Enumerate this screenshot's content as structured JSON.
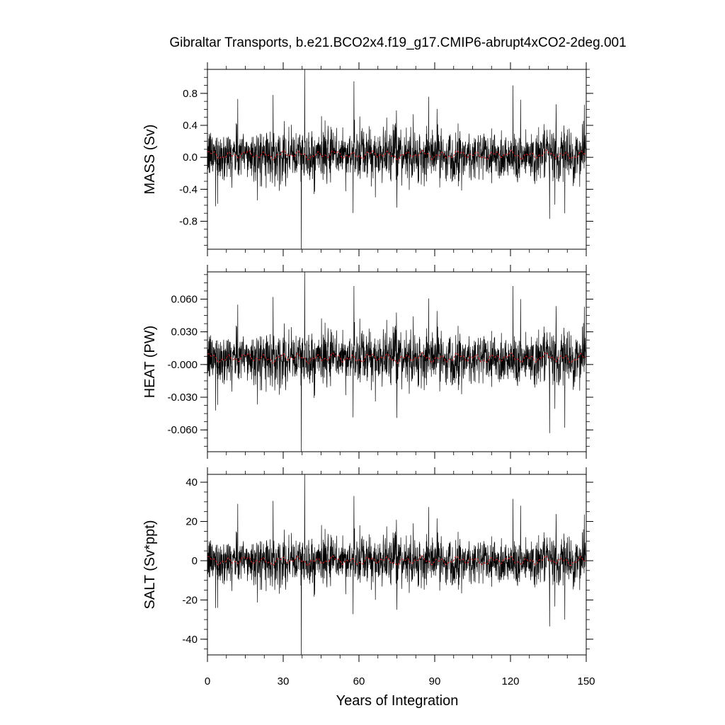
{
  "chart_data": {
    "type": "line",
    "title": "Gibraltar Transports, b.e21.BCO2x4.f19_g17.CMIP6-abrupt4xCO2-2deg.001",
    "xlabel": "Years of Integration",
    "xlim": [
      0,
      150
    ],
    "xticks": [
      "0",
      "30",
      "60",
      "90",
      "120",
      "150"
    ],
    "line_colors": {
      "raw": "#000000",
      "smoothed": "#cc2222"
    },
    "panels": [
      {
        "ylabel": "MASS (Sv)",
        "ylim": [
          -1.15,
          1.1
        ],
        "yticks": [
          {
            "value": 0.8,
            "label": "0.8"
          },
          {
            "value": 0.4,
            "label": "0.4"
          },
          {
            "value": 0.0,
            "label": "0.0"
          },
          {
            "value": -0.4,
            "label": "-0.4"
          },
          {
            "value": -0.8,
            "label": "-0.8"
          }
        ],
        "noise_amplitude": 0.16,
        "smooth_mean": 0.03,
        "smooth_amp": 0.05,
        "spikes": [
          {
            "x": 37.2,
            "y": -1.15
          },
          {
            "x": 38.5,
            "y": 1.1
          },
          {
            "x": 58.0,
            "y": 0.95
          },
          {
            "x": 121.0,
            "y": 0.9
          },
          {
            "x": 12.0,
            "y": 0.73
          },
          {
            "x": 26.0,
            "y": 0.78
          },
          {
            "x": 135.5,
            "y": -0.77
          },
          {
            "x": 141.5,
            "y": -0.7
          },
          {
            "x": 75.0,
            "y": -0.63
          },
          {
            "x": 4.0,
            "y": -0.58
          },
          {
            "x": 124.0,
            "y": 0.72
          }
        ]
      },
      {
        "ylabel": "HEAT (PW)",
        "ylim": [
          -0.08,
          0.085
        ],
        "yticks": [
          {
            "value": 0.06,
            "label": "0.060"
          },
          {
            "value": 0.03,
            "label": "0.030"
          },
          {
            "value": 0.0,
            "label": "-0.000"
          },
          {
            "value": -0.03,
            "label": "-0.030"
          },
          {
            "value": -0.06,
            "label": "-0.060"
          }
        ],
        "noise_amplitude": 0.012,
        "smooth_mean": 0.006,
        "smooth_amp": 0.004,
        "spikes": [
          {
            "x": 37.2,
            "y": -0.08
          },
          {
            "x": 38.5,
            "y": 0.085
          },
          {
            "x": 58.0,
            "y": 0.072
          },
          {
            "x": 121.0,
            "y": 0.072
          },
          {
            "x": 12.0,
            "y": 0.055
          },
          {
            "x": 26.0,
            "y": 0.062
          },
          {
            "x": 135.5,
            "y": -0.063
          },
          {
            "x": 141.5,
            "y": -0.058
          },
          {
            "x": 75.0,
            "y": -0.049
          },
          {
            "x": 4.0,
            "y": -0.037
          },
          {
            "x": 124.0,
            "y": 0.06
          }
        ]
      },
      {
        "ylabel": "SALT (Sv*ppt)",
        "ylim": [
          -48,
          44
        ],
        "yticks": [
          {
            "value": 40,
            "label": "40"
          },
          {
            "value": 20,
            "label": "20"
          },
          {
            "value": 0,
            "label": "0"
          },
          {
            "value": -20,
            "label": "-20"
          },
          {
            "value": -40,
            "label": "-40"
          }
        ],
        "noise_amplitude": 6,
        "smooth_mean": 0,
        "smooth_amp": 2,
        "spikes": [
          {
            "x": 37.2,
            "y": -48
          },
          {
            "x": 38.5,
            "y": 44
          },
          {
            "x": 58.0,
            "y": 33
          },
          {
            "x": 121.0,
            "y": 31.5
          },
          {
            "x": 12.0,
            "y": 29
          },
          {
            "x": 26.0,
            "y": 30.5
          },
          {
            "x": 135.5,
            "y": -33.5
          },
          {
            "x": 141.5,
            "y": -30
          },
          {
            "x": 75.0,
            "y": -25
          },
          {
            "x": 4.0,
            "y": -24
          },
          {
            "x": 124.0,
            "y": 28
          }
        ]
      }
    ]
  }
}
